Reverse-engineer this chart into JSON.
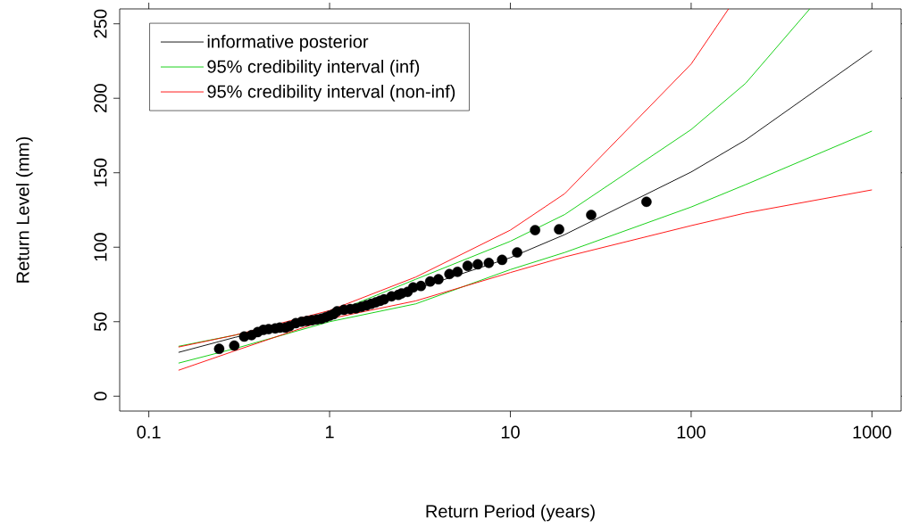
{
  "chart_data": {
    "type": "line",
    "xlabel": "Return Period (years)",
    "ylabel": "Return Level (mm)",
    "log": "x",
    "xlim": [
      0.069,
      1450
    ],
    "ylim": [
      -10,
      260
    ],
    "xticks": [
      0.1,
      1,
      10,
      100,
      1000
    ],
    "yticks": [
      0,
      50,
      100,
      150,
      200,
      250
    ],
    "legend": "top left",
    "grid": false,
    "series": [
      {
        "name": "informative posterior",
        "color": "#000000",
        "x": [
          0.146,
          0.3,
          1,
          3,
          10,
          20,
          100,
          200,
          1000
        ],
        "values": [
          29.4,
          39.5,
          54,
          72,
          93,
          108.5,
          150.5,
          172,
          232
        ]
      },
      {
        "name": "95% credibility interval (inf)",
        "color": "#00cc00",
        "x": [
          0.146,
          0.3,
          1,
          3,
          10,
          20,
          100,
          200,
          453
        ],
        "values": [
          33.5,
          41,
          55,
          78.5,
          104,
          122,
          179,
          210,
          260
        ]
      },
      {
        "color": "#00cc00",
        "x": [
          0.146,
          0.3,
          1,
          3,
          10,
          20,
          100,
          200,
          1000
        ],
        "values": [
          22.2,
          32,
          50,
          62,
          85,
          96.5,
          127,
          142,
          178
        ]
      },
      {
        "name": "95% credibility interval (non-inf)",
        "color": "#ff0000",
        "x": [
          0.146,
          0.3,
          1,
          3,
          10,
          20,
          100,
          161
        ],
        "values": [
          33,
          41,
          57.5,
          80,
          111.5,
          136,
          223,
          260
        ]
      },
      {
        "color": "#ff0000",
        "x": [
          0.146,
          0.3,
          1,
          3,
          10,
          20,
          100,
          200,
          1000
        ],
        "values": [
          17.4,
          30.5,
          52,
          64,
          83,
          93.5,
          114.5,
          123,
          138.5
        ]
      },
      {
        "type": "scatter",
        "marker": "circle",
        "color": "#000000",
        "x": [
          0.245,
          0.297,
          0.337,
          0.37,
          0.4,
          0.43,
          0.46,
          0.5,
          0.53,
          0.57,
          0.6,
          0.65,
          0.7,
          0.75,
          0.8,
          0.85,
          0.9,
          0.95,
          1.0,
          1.05,
          1.1,
          1.2,
          1.3,
          1.4,
          1.5,
          1.6,
          1.7,
          1.8,
          1.9,
          2.0,
          2.2,
          2.4,
          2.5,
          2.7,
          2.9,
          3.2,
          3.6,
          4.0,
          4.6,
          5.1,
          5.8,
          6.6,
          7.6,
          9.0,
          10.9,
          13.7,
          18.6,
          28,
          56.6
        ],
        "values": [
          31.8,
          34,
          40,
          41,
          43,
          44.5,
          45,
          45.5,
          46,
          46,
          47,
          49,
          50,
          50.5,
          51,
          51.5,
          52,
          53,
          54,
          55,
          57,
          58,
          58.5,
          59,
          60,
          61,
          62,
          63,
          64,
          65,
          67,
          68,
          69,
          70,
          73,
          74,
          77,
          78.5,
          82,
          83.5,
          87.5,
          88.5,
          89.5,
          91.5,
          96.5,
          111.5,
          112,
          121.7,
          130.5
        ]
      }
    ]
  }
}
